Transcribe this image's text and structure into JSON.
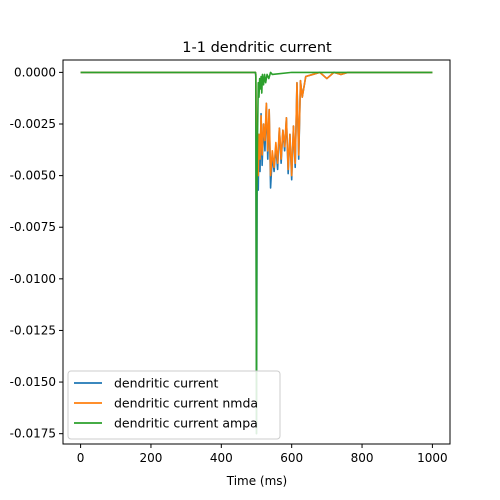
{
  "chart_data": {
    "type": "line",
    "title": "1-1 dendritic current",
    "xlabel": "Time (ms)",
    "ylabel": "",
    "xlim": [
      -50,
      1050
    ],
    "ylim": [
      -0.018,
      0.0006
    ],
    "xticks": [
      0,
      200,
      400,
      600,
      800,
      1000
    ],
    "xtick_labels": [
      "0",
      "200",
      "400",
      "600",
      "800",
      "1000"
    ],
    "yticks": [
      0.0,
      -0.0025,
      -0.005,
      -0.0075,
      -0.01,
      -0.0125,
      -0.015,
      -0.0175
    ],
    "ytick_labels": [
      "0.0000",
      "-0.0025",
      "-0.0050",
      "-0.0075",
      "-0.0100",
      "-0.0125",
      "-0.0150",
      "-0.0175"
    ],
    "grid": false,
    "legend_position": "lower-left",
    "series": [
      {
        "name": "dendritic current",
        "color": "#1f77b4",
        "x": [
          0,
          497,
          498,
          500,
          502,
          505,
          507,
          510,
          513,
          516,
          520,
          524,
          528,
          532,
          536,
          540,
          545,
          550,
          555,
          560,
          565,
          570,
          575,
          580,
          585,
          590,
          595,
          600,
          605,
          610,
          615,
          620,
          625,
          630,
          640,
          660,
          680,
          700,
          720,
          740,
          760,
          800,
          1000
        ],
        "y": [
          0,
          0,
          -0.0002,
          -0.0175,
          -0.004,
          -0.0057,
          -0.003,
          -0.0048,
          -0.002,
          -0.0045,
          -0.0025,
          -0.0038,
          -0.0015,
          -0.0042,
          -0.0018,
          -0.0056,
          -0.004,
          -0.0048,
          -0.0036,
          -0.0047,
          -0.0027,
          -0.0044,
          -0.0028,
          -0.0038,
          -0.0022,
          -0.0049,
          -0.003,
          -0.0052,
          -0.0026,
          -0.0046,
          -0.0005,
          -0.0042,
          -0.0004,
          -0.0012,
          -0.0002,
          -0.0001,
          0,
          -0.0003,
          0,
          -0.0001,
          0,
          0,
          0
        ]
      },
      {
        "name": "dendritic current nmda",
        "color": "#ff7f0e",
        "x": [
          0,
          497,
          498,
          500,
          502,
          505,
          507,
          510,
          513,
          516,
          520,
          524,
          528,
          532,
          536,
          540,
          545,
          550,
          555,
          560,
          565,
          570,
          575,
          580,
          585,
          590,
          595,
          600,
          605,
          610,
          615,
          620,
          625,
          630,
          640,
          660,
          680,
          700,
          720,
          740,
          760,
          800,
          1000
        ],
        "y": [
          0,
          0,
          -0.0001,
          -0.004,
          -0.0035,
          -0.005,
          -0.003,
          -0.0042,
          -0.0021,
          -0.004,
          -0.0025,
          -0.0033,
          -0.0015,
          -0.0038,
          -0.0018,
          -0.005,
          -0.0038,
          -0.0046,
          -0.0034,
          -0.0044,
          -0.0027,
          -0.0042,
          -0.0028,
          -0.0036,
          -0.0022,
          -0.0047,
          -0.003,
          -0.005,
          -0.0026,
          -0.0044,
          -0.0005,
          -0.004,
          -0.0004,
          -0.0012,
          -0.0002,
          -0.0001,
          0,
          -0.0003,
          0,
          -0.0001,
          0,
          0,
          0
        ]
      },
      {
        "name": "dendritic current ampa",
        "color": "#2ca02c",
        "x": [
          0,
          497,
          498,
          500,
          501,
          503,
          505,
          507,
          509,
          511,
          513,
          515,
          517,
          520,
          523,
          526,
          530,
          535,
          540,
          545,
          600,
          800,
          1000
        ],
        "y": [
          0,
          0,
          -0.0001,
          -0.0175,
          -0.006,
          -0.003,
          -0.0005,
          -0.0012,
          -0.0003,
          -0.0008,
          -0.0002,
          -0.001,
          -0.0001,
          -0.0006,
          -0.0001,
          -0.0005,
          -0.0001,
          -0.0003,
          0,
          -0.0001,
          0,
          0,
          0
        ]
      }
    ]
  }
}
